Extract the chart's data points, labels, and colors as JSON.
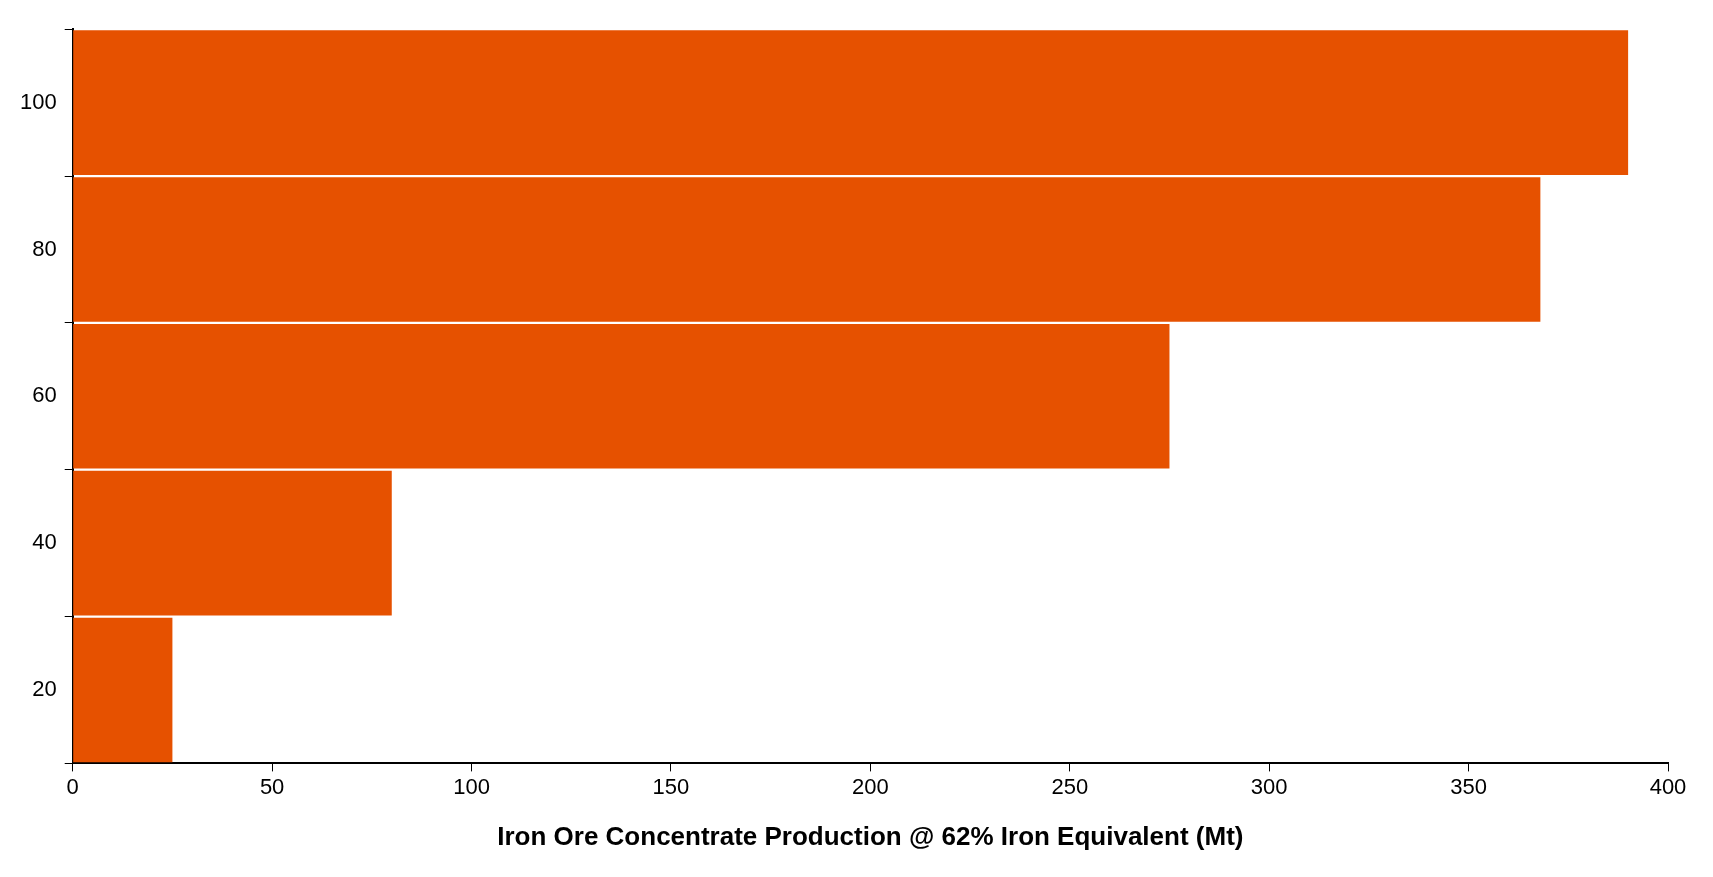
{
  "chart_data": {
    "type": "bar",
    "orientation": "horizontal",
    "xlabel": "Iron Ore Concentrate Production @ 62% Iron Equivalent (Mt)",
    "categories": [
      "100",
      "80",
      "60",
      "40",
      "20"
    ],
    "values": [
      390,
      368,
      275,
      80,
      25
    ],
    "color": "#e65100",
    "xlim": [
      0,
      400
    ],
    "xticks": [
      0,
      50,
      100,
      150,
      200,
      250,
      300,
      350,
      400
    ],
    "grid": false,
    "legend": false
  }
}
